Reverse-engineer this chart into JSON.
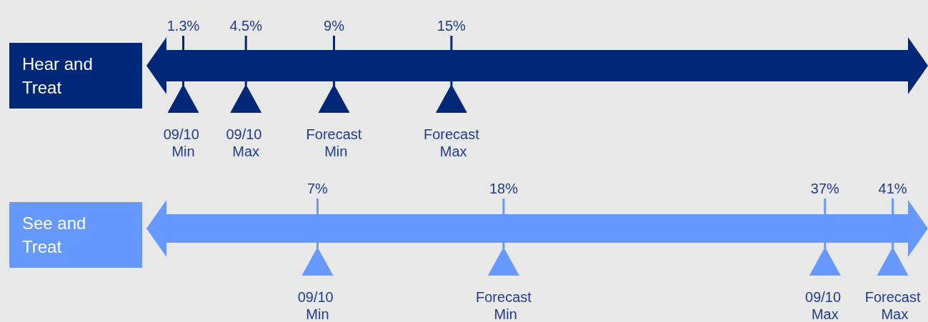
{
  "chart_data": [
    {
      "type": "other",
      "title": "Hear and Treat",
      "color": "#002878",
      "categories": [
        "09/10 Min",
        "09/10 Max",
        "Forecast Min",
        "Forecast Max"
      ],
      "values": [
        1.3,
        4.5,
        9,
        15
      ],
      "value_labels": [
        "1.3%",
        "4.5%",
        "9%",
        "15%"
      ]
    },
    {
      "type": "other",
      "title": "See and Treat",
      "color": "#6699ff",
      "categories": [
        "09/10 Min",
        "Forecast Min",
        "09/10 Max",
        "Forecast Max"
      ],
      "values": [
        7,
        18,
        37,
        41
      ],
      "value_labels": [
        "7%",
        "18%",
        "37%",
        "41%"
      ]
    }
  ]
}
